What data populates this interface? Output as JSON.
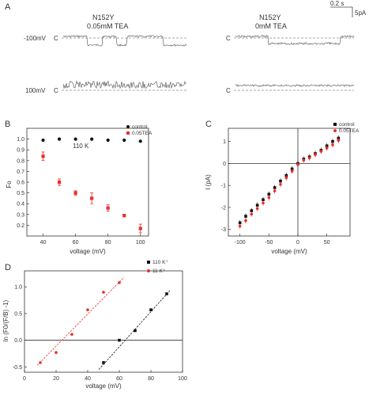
{
  "panel_labels": {
    "A": "A",
    "B": "B",
    "C": "C",
    "D": "D"
  },
  "panel_a": {
    "scale_time": "0.2 s",
    "scale_current": "5pA",
    "col1_title_1": "N152Y",
    "col1_title_2": "0.05mM  TEA",
    "col2_title_1": "N152Y",
    "col2_title_2": "0mM  TEA",
    "row1_voltage": "-100mV",
    "row2_voltage": "100mV",
    "closed_marker": "C"
  },
  "chart_data": [
    {
      "id": "B",
      "type": "scatter",
      "annotation": "110 K",
      "xlabel": "voltage (mV)",
      "ylabel": "Fo",
      "xlim": [
        30,
        105
      ],
      "ylim": [
        0.1,
        1.1
      ],
      "xticks": [
        "40",
        "60",
        "80",
        "100"
      ],
      "yticks": [
        "0.2",
        "0.3",
        "0.4",
        "0.5",
        "0.6",
        "0.7",
        "0.8",
        "0.9",
        "1.0"
      ],
      "legend_position": "top-right",
      "series": [
        {
          "name": "control",
          "color": "#111111",
          "marker": "circle",
          "x": [
            40,
            50,
            60,
            70,
            80,
            90,
            100
          ],
          "y": [
            0.99,
            1.0,
            1.0,
            1.0,
            0.99,
            0.99,
            0.98
          ],
          "err": [
            0,
            0,
            0,
            0,
            0,
            0,
            0
          ]
        },
        {
          "name": "0.05TEA",
          "color": "#e8302a",
          "marker": "square",
          "x": [
            40,
            50,
            60,
            70,
            80,
            90,
            100
          ],
          "y": [
            0.84,
            0.6,
            0.5,
            0.45,
            0.36,
            0.29,
            0.17
          ],
          "err": [
            0.04,
            0.03,
            0.02,
            0.05,
            0.03,
            0.01,
            0.04
          ]
        }
      ]
    },
    {
      "id": "C",
      "type": "scatter",
      "xlabel": "voltage (mV)",
      "ylabel": "I (pA)",
      "xlim": [
        -120,
        90
      ],
      "ylim": [
        -3.3,
        1.6
      ],
      "xticks": [
        "-100",
        "-50",
        "0",
        "50"
      ],
      "yticks": [
        "-3",
        "-2",
        "-1",
        "0",
        "1"
      ],
      "legend_position": "top-right",
      "series": [
        {
          "name": "control",
          "color": "#111111",
          "marker": "square",
          "x": [
            -100,
            -90,
            -80,
            -70,
            -60,
            -50,
            -40,
            -30,
            -20,
            -10,
            0,
            10,
            20,
            30,
            40,
            50,
            60,
            70
          ],
          "y": [
            -2.7,
            -2.4,
            -2.15,
            -1.9,
            -1.65,
            -1.4,
            -1.1,
            -0.8,
            -0.55,
            -0.25,
            0.0,
            0.2,
            0.3,
            0.45,
            0.6,
            0.8,
            1.0,
            1.15
          ]
        },
        {
          "name": "0.05TEA",
          "color": "#e8302a",
          "marker": "circle",
          "x": [
            -100,
            -90,
            -80,
            -70,
            -60,
            -50,
            -40,
            -30,
            -20,
            -10,
            0,
            10,
            20,
            30,
            40,
            50,
            60,
            70
          ],
          "y": [
            -2.85,
            -2.6,
            -2.3,
            -2.05,
            -1.8,
            -1.55,
            -1.25,
            -0.95,
            -0.65,
            -0.35,
            -0.05,
            0.15,
            0.25,
            0.4,
            0.55,
            0.7,
            0.85,
            1.05
          ]
        }
      ]
    },
    {
      "id": "D",
      "type": "scatter",
      "xlabel": "voltage (mV)",
      "ylabel": "ln (F0/(F/B) -1)",
      "xlim": [
        0,
        100
      ],
      "ylim": [
        -0.6,
        1.3
      ],
      "xticks": [
        "0",
        "20",
        "40",
        "60",
        "80",
        "100"
      ],
      "yticks": [
        "-0.5",
        "0.0",
        "0.5",
        "1.0"
      ],
      "legend_position": "top-right",
      "series": [
        {
          "name": "110 K⁺",
          "color": "#111111",
          "marker": "square",
          "x": [
            50,
            60,
            70,
            80,
            90
          ],
          "y": [
            -0.42,
            0.0,
            0.18,
            0.57,
            0.87
          ],
          "fit": [
            [
              47,
              -0.55
            ],
            [
              92,
              0.93
            ]
          ]
        },
        {
          "name": "11 K⁺",
          "color": "#e8302a",
          "marker": "circle",
          "x": [
            10,
            20,
            30,
            40,
            50,
            60
          ],
          "y": [
            -0.42,
            -0.23,
            0.11,
            0.57,
            0.9,
            1.08
          ],
          "fit": [
            [
              8,
              -0.47
            ],
            [
              63,
              1.18
            ]
          ]
        }
      ]
    }
  ]
}
